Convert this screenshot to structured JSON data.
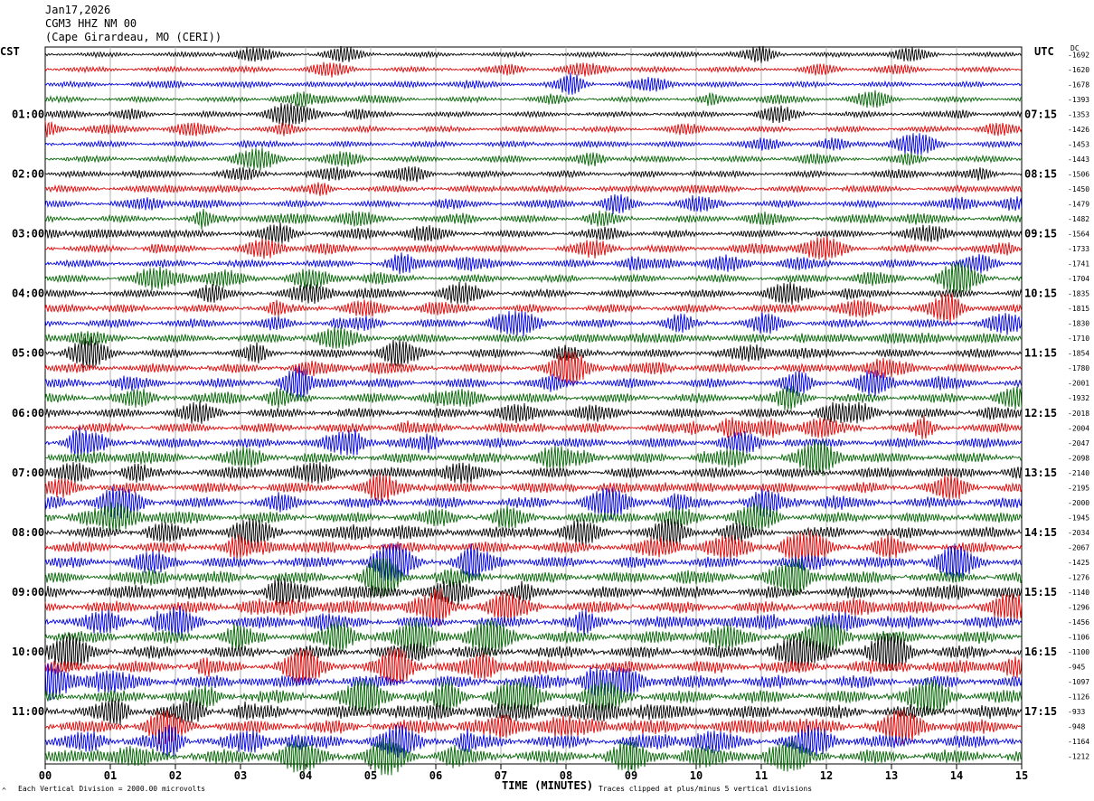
{
  "header": {
    "date": "Jan17,2026",
    "station": "CGM3 HHZ NM 00",
    "location": "(Cape Girardeau, MO (CERI))"
  },
  "left_timezone": "CST",
  "right_timezone": "UTC",
  "right_column_header": "DC",
  "colors": {
    "trace_cycle": [
      "#000000",
      "#e00000",
      "#0000e0",
      "#006400"
    ],
    "grid": "#b0b0b0"
  },
  "footer": {
    "scale_note": "Each Vertical Division = 2000.00 microvolts",
    "clip_note": "Traces clipped at plus/minus 5 vertical divisions",
    "corner_mark": "^"
  },
  "chart_data": {
    "type": "line",
    "title": "",
    "xlabel": "TIME (MINUTES)",
    "x_ticks": [
      "00",
      "01",
      "02",
      "03",
      "04",
      "05",
      "06",
      "07",
      "08",
      "09",
      "10",
      "11",
      "12",
      "13",
      "14",
      "15"
    ],
    "xlim": [
      0,
      15
    ],
    "rows": 48,
    "left_hour_labels": [
      {
        "row": 4,
        "label": "01:00"
      },
      {
        "row": 8,
        "label": "02:00"
      },
      {
        "row": 12,
        "label": "03:00"
      },
      {
        "row": 16,
        "label": "04:00"
      },
      {
        "row": 20,
        "label": "05:00"
      },
      {
        "row": 24,
        "label": "06:00"
      },
      {
        "row": 28,
        "label": "07:00"
      },
      {
        "row": 32,
        "label": "08:00"
      },
      {
        "row": 36,
        "label": "09:00"
      },
      {
        "row": 40,
        "label": "10:00"
      },
      {
        "row": 44,
        "label": "11:00"
      }
    ],
    "right_hour_labels": [
      {
        "row": 4,
        "label": "07:15"
      },
      {
        "row": 8,
        "label": "08:15"
      },
      {
        "row": 12,
        "label": "09:15"
      },
      {
        "row": 16,
        "label": "10:15"
      },
      {
        "row": 20,
        "label": "11:15"
      },
      {
        "row": 24,
        "label": "12:15"
      },
      {
        "row": 28,
        "label": "13:15"
      },
      {
        "row": 32,
        "label": "14:15"
      },
      {
        "row": 36,
        "label": "15:15"
      },
      {
        "row": 40,
        "label": "16:15"
      },
      {
        "row": 44,
        "label": "17:15"
      }
    ],
    "dc_offsets": [
      "-1692",
      "-1620",
      "-1678",
      "-1393",
      "-1353",
      "-1426",
      "-1453",
      "-1443",
      "-1506",
      "-1450",
      "-1479",
      "-1482",
      "-1564",
      "-1733",
      "-1741",
      "-1704",
      "-1835",
      "-1815",
      "-1830",
      "-1710",
      "-1854",
      "-1780",
      "-2001",
      "-1932",
      "-2018",
      "-2004",
      "-2047",
      "-2098",
      "-2140",
      "-2195",
      "-2000",
      "-1945",
      "-2034",
      "-2067",
      "-1425",
      "-1276",
      "-1140",
      "-1296",
      "-1456",
      "-1106",
      "-1100",
      "-945",
      "-1097",
      "-1126",
      "-933",
      "-948",
      "-1164",
      "-1212"
    ],
    "series": [
      {
        "color": "#000000"
      },
      {
        "color": "#e00000"
      },
      {
        "color": "#0000e0"
      },
      {
        "color": "#006400"
      }
    ]
  }
}
